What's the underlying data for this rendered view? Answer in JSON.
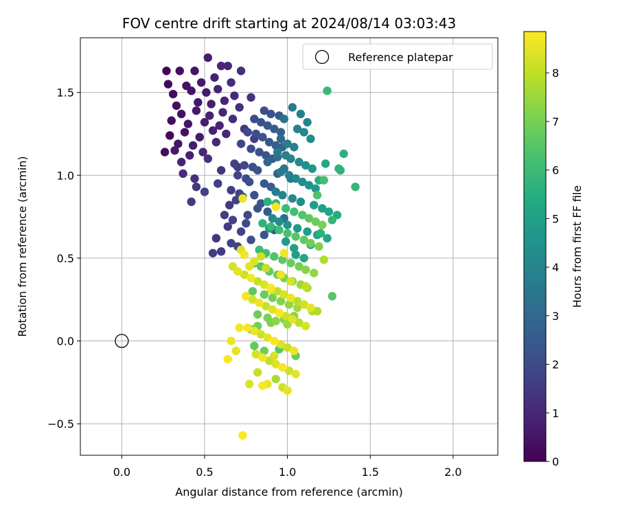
{
  "chart_data": {
    "type": "scatter",
    "title": "FOV centre drift starting at 2024/08/14 03:03:43",
    "xlabel": "Angular distance from reference (arcmin)",
    "ylabel": "Rotation from reference (arcmin)",
    "xlim": [
      -0.25,
      2.27
    ],
    "ylim": [
      -0.69,
      1.83
    ],
    "x_ticks": [
      0.0,
      0.5,
      1.0,
      1.5,
      2.0
    ],
    "x_tick_labels": [
      "0.0",
      "0.5",
      "1.0",
      "1.5",
      "2.0"
    ],
    "y_ticks": [
      -0.5,
      0.0,
      0.5,
      1.0,
      1.5
    ],
    "y_tick_labels": [
      "−0.5",
      "0.0",
      "0.5",
      "1.0",
      "1.5"
    ],
    "grid": true,
    "colormap": "viridis",
    "colorbar": {
      "label": "Hours from first FF file",
      "range": [
        0,
        8.85
      ],
      "ticks": [
        0,
        1,
        2,
        3,
        4,
        5,
        6,
        7,
        8
      ],
      "tick_labels": [
        "0",
        "1",
        "2",
        "3",
        "4",
        "5",
        "6",
        "7",
        "8"
      ]
    },
    "legend": {
      "location": "top-right",
      "entries": [
        "Reference platepar"
      ]
    },
    "reference_point": {
      "x": 0.0,
      "y": 0.0,
      "marker": "open-circle"
    },
    "series": [
      {
        "x": [
          0.27,
          0.35,
          0.44,
          0.52,
          0.6,
          0.64,
          0.72,
          0.28,
          0.39,
          0.48,
          0.56,
          0.66,
          0.31,
          0.42,
          0.51,
          0.58,
          0.68,
          0.78,
          0.33,
          0.46,
          0.54,
          0.62,
          0.71,
          0.36,
          0.45,
          0.53,
          0.61,
          0.3,
          0.4,
          0.5,
          0.59,
          0.67,
          0.29,
          0.38,
          0.47,
          0.55,
          0.63,
          0.34,
          0.43,
          0.57,
          0.8,
          0.32,
          0.41,
          0.49,
          0.26,
          0.36,
          0.52,
          0.37,
          0.44,
          0.6,
          0.7,
          0.45,
          0.58,
          0.42,
          0.5,
          0.74
        ],
        "y": [
          1.63,
          1.63,
          1.63,
          1.71,
          1.66,
          1.66,
          1.63,
          1.55,
          1.54,
          1.56,
          1.59,
          1.56,
          1.49,
          1.51,
          1.5,
          1.52,
          1.48,
          1.47,
          1.42,
          1.44,
          1.43,
          1.45,
          1.41,
          1.37,
          1.39,
          1.36,
          1.38,
          1.33,
          1.31,
          1.32,
          1.3,
          1.34,
          1.24,
          1.26,
          1.23,
          1.27,
          1.25,
          1.19,
          1.18,
          1.2,
          1.22,
          1.15,
          1.12,
          1.14,
          1.14,
          1.08,
          1.1,
          1.01,
          0.98,
          1.03,
          1.05,
          0.93,
          0.95,
          0.84,
          0.9,
          1.28
        ],
        "hours": [
          0.1,
          0.3,
          0.5,
          0.7,
          0.9,
          1.0,
          1.2,
          0.2,
          0.4,
          0.6,
          0.8,
          1.1,
          0.25,
          0.45,
          0.65,
          0.85,
          1.05,
          1.3,
          0.35,
          0.55,
          0.75,
          0.95,
          1.25,
          0.4,
          0.6,
          0.8,
          1.0,
          0.3,
          0.5,
          0.7,
          0.9,
          1.15,
          0.2,
          0.4,
          0.6,
          0.8,
          1.0,
          0.5,
          0.7,
          0.9,
          1.6,
          0.6,
          0.8,
          1.0,
          0.3,
          0.9,
          1.2,
          1.1,
          1.3,
          1.4,
          1.5,
          1.4,
          1.6,
          1.5,
          1.7,
          1.4
        ]
      },
      {
        "x": [
          0.86,
          0.9,
          0.95,
          0.8,
          0.84,
          0.88,
          0.92,
          0.96,
          0.76,
          0.81,
          0.85,
          0.89,
          0.93,
          0.97,
          0.72,
          0.78,
          0.83,
          0.87,
          0.91,
          0.68,
          0.74,
          0.79,
          0.82,
          0.94,
          0.7,
          0.75,
          0.77,
          0.86,
          0.9,
          0.66,
          0.71,
          0.73,
          0.69,
          0.65,
          0.82,
          0.88,
          0.62,
          0.67,
          0.75,
          0.64,
          0.72,
          0.57,
          0.55,
          0.6,
          0.66,
          0.7,
          0.78,
          0.86,
          0.92,
          0.98,
          0.8,
          0.84,
          0.76,
          0.88,
          0.94,
          0.98,
          1.02,
          0.96
        ],
        "y": [
          1.39,
          1.37,
          1.36,
          1.34,
          1.32,
          1.3,
          1.28,
          1.26,
          1.26,
          1.25,
          1.23,
          1.2,
          1.18,
          1.17,
          1.19,
          1.16,
          1.14,
          1.12,
          1.1,
          1.07,
          1.06,
          1.05,
          1.03,
          1.01,
          1.0,
          0.98,
          0.96,
          0.95,
          0.93,
          0.91,
          0.89,
          0.87,
          0.85,
          0.82,
          0.8,
          0.78,
          0.76,
          0.73,
          0.71,
          0.69,
          0.66,
          0.62,
          0.53,
          0.54,
          0.59,
          0.57,
          0.61,
          0.64,
          0.67,
          0.74,
          0.88,
          0.83,
          0.76,
          1.08,
          1.11,
          1.04,
          0.98,
          1.22
        ],
        "hours": [
          2.1,
          2.3,
          2.5,
          2.0,
          2.2,
          2.4,
          2.6,
          2.7,
          1.9,
          2.1,
          2.3,
          2.5,
          2.7,
          2.9,
          1.8,
          2.0,
          2.2,
          2.4,
          2.6,
          1.7,
          1.9,
          2.1,
          2.3,
          2.8,
          1.8,
          2.0,
          2.1,
          2.5,
          2.7,
          1.6,
          1.8,
          1.9,
          1.7,
          1.5,
          2.2,
          2.5,
          1.6,
          1.7,
          2.0,
          1.5,
          1.8,
          1.4,
          1.6,
          1.5,
          1.7,
          1.8,
          2.1,
          2.4,
          2.8,
          3.1,
          2.2,
          2.4,
          2.0,
          2.9,
          3.2,
          3.4,
          3.6,
          3.0
        ]
      },
      {
        "x": [
          1.03,
          1.08,
          1.12,
          0.98,
          1.06,
          1.1,
          1.14,
          1.0,
          1.04,
          0.94,
          0.99,
          1.02,
          1.07,
          1.11,
          1.15,
          0.96,
          1.01,
          1.05,
          1.09,
          1.13,
          1.17,
          0.93,
          0.97,
          1.03,
          1.08,
          1.16,
          1.21,
          1.25,
          1.3,
          0.91,
          0.95,
          1.0,
          1.06,
          1.12,
          1.18,
          1.24,
          1.34,
          1.41,
          1.05,
          1.1,
          1.19,
          1.23,
          1.31,
          0.89,
          0.99,
          1.04,
          1.14,
          1.2,
          1.27
        ],
        "y": [
          1.41,
          1.37,
          1.32,
          1.34,
          1.28,
          1.26,
          1.22,
          1.19,
          1.17,
          1.14,
          1.12,
          1.1,
          1.08,
          1.06,
          1.04,
          1.02,
          1.0,
          0.98,
          0.96,
          0.94,
          0.92,
          0.9,
          0.88,
          0.86,
          0.84,
          0.82,
          0.8,
          0.78,
          0.76,
          0.74,
          0.72,
          0.7,
          0.68,
          0.66,
          0.64,
          0.62,
          1.13,
          0.93,
          0.52,
          0.5,
          0.97,
          1.07,
          1.04,
          0.68,
          0.6,
          0.56,
          0.58,
          0.65,
          0.73
        ],
        "hours": [
          3.6,
          3.8,
          4.0,
          3.4,
          3.9,
          4.1,
          4.3,
          3.7,
          3.9,
          3.5,
          3.8,
          4.0,
          4.2,
          4.4,
          4.6,
          3.6,
          3.9,
          4.1,
          4.3,
          4.5,
          4.7,
          3.7,
          4.0,
          4.2,
          4.4,
          4.8,
          5.0,
          5.2,
          5.4,
          4.1,
          4.3,
          4.5,
          4.7,
          4.9,
          5.1,
          5.3,
          5.6,
          5.8,
          5.0,
          5.2,
          5.5,
          5.3,
          5.7,
          4.6,
          4.8,
          5.0,
          5.4,
          5.6,
          5.8
        ]
      },
      {
        "x": [
          1.24,
          1.32,
          1.22,
          1.18,
          0.88,
          0.93,
          0.99,
          1.04,
          1.09,
          1.13,
          1.17,
          1.21,
          0.85,
          0.9,
          0.95,
          1.0,
          1.05,
          1.1,
          1.14,
          1.19,
          0.83,
          0.87,
          0.92,
          0.97,
          1.02,
          1.07,
          1.11,
          1.16,
          0.8,
          0.84,
          0.89,
          0.94,
          0.98,
          1.03,
          1.08,
          1.12,
          0.79,
          0.86,
          0.91,
          0.96,
          1.01,
          1.06,
          1.15,
          0.82,
          0.88,
          0.93,
          1.0,
          1.27,
          0.95,
          1.05,
          0.8,
          0.86,
          0.78,
          0.82,
          0.9,
          0.98,
          1.04
        ],
        "y": [
          1.51,
          1.03,
          0.97,
          0.88,
          0.84,
          0.83,
          0.8,
          0.78,
          0.76,
          0.74,
          0.72,
          0.7,
          0.71,
          0.69,
          0.67,
          0.65,
          0.63,
          0.61,
          0.59,
          0.57,
          0.55,
          0.53,
          0.51,
          0.49,
          0.47,
          0.45,
          0.43,
          0.41,
          0.47,
          0.45,
          0.42,
          0.4,
          0.38,
          0.36,
          0.34,
          0.32,
          0.3,
          0.28,
          0.26,
          0.24,
          0.22,
          0.2,
          0.18,
          0.16,
          0.14,
          0.12,
          0.1,
          0.27,
          -0.05,
          -0.09,
          -0.03,
          -0.06,
          0.07,
          0.09,
          0.11,
          0.13,
          0.15
        ],
        "hours": [
          5.9,
          5.7,
          6.2,
          6.4,
          5.6,
          5.8,
          6.0,
          6.2,
          6.4,
          6.6,
          6.8,
          7.0,
          5.7,
          5.9,
          6.1,
          6.3,
          6.5,
          6.7,
          6.9,
          7.1,
          6.0,
          6.2,
          6.4,
          6.6,
          6.8,
          7.0,
          7.2,
          7.4,
          6.3,
          6.5,
          6.7,
          6.9,
          7.1,
          7.3,
          7.5,
          7.7,
          6.6,
          6.8,
          7.0,
          7.2,
          7.4,
          7.6,
          7.8,
          6.9,
          7.1,
          7.3,
          7.5,
          6.5,
          6.5,
          6.8,
          6.7,
          6.9,
          6.9,
          7.0,
          7.1,
          7.2,
          7.3
        ]
      },
      {
        "x": [
          0.73,
          0.72,
          0.67,
          0.7,
          0.74,
          0.78,
          0.82,
          0.86,
          0.9,
          0.94,
          0.98,
          1.02,
          1.06,
          1.1,
          1.14,
          1.18,
          0.75,
          0.79,
          0.83,
          0.87,
          0.91,
          0.95,
          0.99,
          1.03,
          1.07,
          1.11,
          0.76,
          0.8,
          0.84,
          0.88,
          0.92,
          0.96,
          1.0,
          1.04,
          0.81,
          0.85,
          0.89,
          0.93,
          0.97,
          1.01,
          1.05,
          0.71,
          0.66,
          0.64,
          0.69,
          0.73,
          0.77,
          0.82,
          0.88,
          0.93,
          0.97,
          1.0,
          0.85,
          0.92,
          0.74,
          0.8,
          0.87,
          0.96,
          1.02,
          1.11,
          1.22,
          0.98,
          0.93,
          0.77,
          0.84,
          0.9
        ],
        "y": [
          0.86,
          0.55,
          0.45,
          0.42,
          0.4,
          0.38,
          0.36,
          0.34,
          0.32,
          0.3,
          0.28,
          0.26,
          0.24,
          0.22,
          0.2,
          0.18,
          0.27,
          0.25,
          0.23,
          0.21,
          0.19,
          0.17,
          0.15,
          0.13,
          0.11,
          0.09,
          0.08,
          0.06,
          0.04,
          0.02,
          0.0,
          -0.02,
          -0.04,
          -0.06,
          -0.08,
          -0.1,
          -0.12,
          -0.14,
          -0.16,
          -0.18,
          -0.2,
          0.08,
          0.0,
          -0.11,
          -0.06,
          -0.57,
          -0.26,
          -0.19,
          -0.26,
          -0.23,
          -0.28,
          -0.3,
          -0.27,
          -0.09,
          0.52,
          0.48,
          0.44,
          0.4,
          0.36,
          0.33,
          0.49,
          0.53,
          0.81,
          0.45,
          0.51,
          0.31
        ],
        "hours": [
          8.6,
          8.4,
          8.3,
          8.5,
          8.2,
          8.7,
          8.1,
          8.4,
          8.8,
          8.0,
          8.3,
          8.6,
          7.9,
          8.2,
          8.5,
          7.8,
          8.7,
          8.3,
          8.6,
          8.1,
          8.4,
          8.8,
          8.2,
          8.5,
          7.9,
          8.3,
          8.7,
          8.6,
          8.2,
          8.5,
          8.8,
          8.4,
          8.1,
          8.6,
          8.3,
          8.7,
          8.0,
          8.4,
          8.8,
          8.2,
          8.5,
          8.7,
          8.6,
          8.8,
          8.5,
          8.8,
          8.4,
          8.1,
          8.6,
          7.7,
          8.2,
          8.5,
          8.8,
          8.3,
          8.7,
          8.4,
          8.1,
          8.6,
          8.3,
          8.0,
          7.8,
          8.7,
          8.7,
          8.5,
          8.2,
          8.4
        ]
      }
    ]
  }
}
